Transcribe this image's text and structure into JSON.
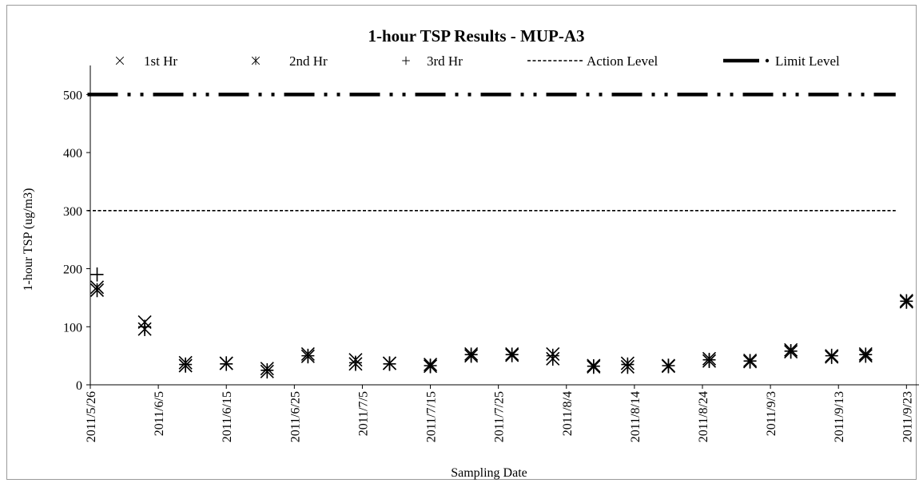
{
  "chart_data": {
    "type": "scatter",
    "title": "1-hour TSP Results - MUP-A3",
    "xlabel": "Sampling Date",
    "ylabel": "1-hour TSP (ug/m3)",
    "ylim": [
      0,
      550
    ],
    "yticks": [
      "0",
      "100",
      "200",
      "300",
      "400",
      "500"
    ],
    "xlim": [
      "2011/5/26",
      "2011/9/23"
    ],
    "xticks": [
      "2011/5/26",
      "2011/6/5",
      "2011/6/15",
      "2011/6/25",
      "2011/7/5",
      "2011/7/15",
      "2011/7/25",
      "2011/8/4",
      "2011/8/14",
      "2011/8/24",
      "2011/9/3",
      "2011/9/13",
      "2011/9/23"
    ],
    "grid": false,
    "legend_position": "top",
    "dates": [
      "2011/5/27",
      "2011/6/3",
      "2011/6/9",
      "2011/6/15",
      "2011/6/21",
      "2011/6/27",
      "2011/7/4",
      "2011/7/9",
      "2011/7/15",
      "2011/7/21",
      "2011/7/27",
      "2011/8/2",
      "2011/8/8",
      "2011/8/13",
      "2011/8/19",
      "2011/8/25",
      "2011/8/31",
      "2011/9/6",
      "2011/9/12",
      "2011/9/17",
      "2011/9/23"
    ],
    "series": [
      {
        "name": "1st Hr",
        "marker": "x",
        "values": [
          168,
          108,
          38,
          37,
          28,
          53,
          43,
          37,
          35,
          53,
          53,
          53,
          33,
          37,
          33,
          45,
          42,
          60,
          50,
          53,
          145
        ]
      },
      {
        "name": "2nd Hr",
        "marker": "asterisk",
        "values": [
          163,
          96,
          33,
          37,
          23,
          49,
          36,
          37,
          32,
          50,
          51,
          45,
          31,
          31,
          32,
          41,
          40,
          57,
          48,
          50,
          143
        ]
      },
      {
        "name": "3rd Hr",
        "marker": "plus",
        "values": [
          190,
          100,
          35,
          36,
          25,
          50,
          38,
          36,
          33,
          52,
          52,
          50,
          32,
          35,
          33,
          43,
          41,
          58,
          50,
          52,
          144
        ]
      }
    ],
    "reference_lines": [
      {
        "name": "Action Level",
        "value": 300,
        "style": "dashed",
        "from": "2011/5/27",
        "to": "2011/9/20"
      },
      {
        "name": "Limit Level",
        "value": 500,
        "style": "dash-dot-dot",
        "from": "2011/5/27",
        "to": "2011/9/20"
      }
    ],
    "colors": {
      "marks": "#000000",
      "axis": "#000000"
    }
  }
}
